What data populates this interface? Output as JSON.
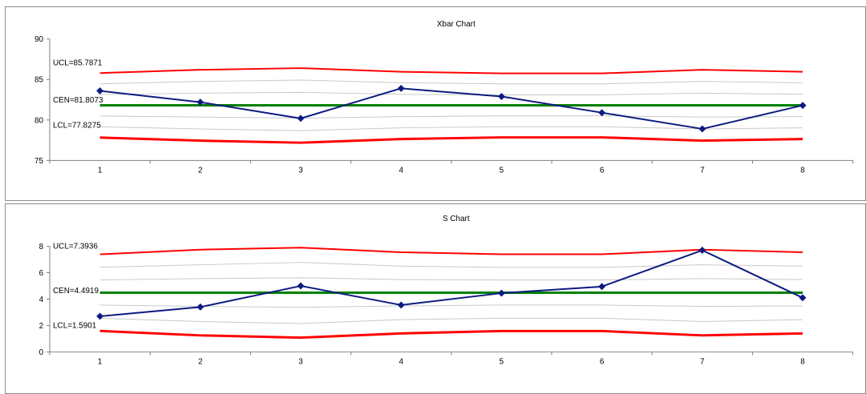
{
  "chart_data": [
    {
      "type": "line",
      "title": "Xbar Chart",
      "categories": [
        "1",
        "2",
        "3",
        "4",
        "5",
        "6",
        "7",
        "8"
      ],
      "ylim": [
        75,
        90
      ],
      "yticks": [
        "75",
        "80",
        "85",
        "90"
      ],
      "grid": false,
      "series": [
        {
          "name": "",
          "role": "data",
          "color": "#0d1a80",
          "marker": "diamond",
          "values": [
            83.6,
            82.2,
            80.2,
            83.9,
            82.9,
            80.9,
            78.9,
            81.8
          ]
        },
        {
          "name": "",
          "role": "ucl",
          "color": "#ff0000",
          "values": [
            85.79,
            86.2,
            86.4,
            85.95,
            85.75,
            85.75,
            86.2,
            85.95
          ]
        },
        {
          "name": "",
          "role": "cen",
          "color": "#008000",
          "values": [
            81.81,
            81.81,
            81.81,
            81.81,
            81.81,
            81.81,
            81.81,
            81.81
          ]
        },
        {
          "name": "",
          "role": "lcl",
          "color": "#ff0000",
          "values": [
            77.83,
            77.45,
            77.2,
            77.65,
            77.85,
            77.85,
            77.45,
            77.65
          ]
        },
        {
          "name": "",
          "role": "zone",
          "color": "#c8c8c8",
          "values": [
            84.46,
            84.76,
            84.93,
            84.6,
            84.45,
            84.45,
            84.76,
            84.6
          ]
        },
        {
          "name": "",
          "role": "zone",
          "color": "#c8c8c8",
          "values": [
            83.14,
            83.31,
            83.41,
            83.17,
            83.1,
            83.1,
            83.31,
            83.17
          ]
        },
        {
          "name": "",
          "role": "zone",
          "color": "#c8c8c8",
          "values": [
            80.49,
            80.36,
            80.23,
            80.41,
            80.51,
            80.51,
            80.36,
            80.41
          ]
        },
        {
          "name": "",
          "role": "zone",
          "color": "#c8c8c8",
          "values": [
            79.16,
            78.89,
            78.69,
            79.03,
            79.17,
            79.17,
            78.89,
            79.03
          ]
        }
      ],
      "annotations": [
        "UCL=85.7871",
        "CEN=81.8073",
        "LCL=77.8275"
      ]
    },
    {
      "type": "line",
      "title": "S Chart",
      "categories": [
        "1",
        "2",
        "3",
        "4",
        "5",
        "6",
        "7",
        "8"
      ],
      "ylim": [
        0,
        8
      ],
      "yticks": [
        "0",
        "2",
        "4",
        "6",
        "8"
      ],
      "grid": false,
      "series": [
        {
          "name": "",
          "role": "data",
          "color": "#0d1a80",
          "marker": "diamond",
          "values": [
            2.7,
            3.4,
            5.0,
            3.55,
            4.45,
            4.95,
            7.7,
            4.1
          ]
        },
        {
          "name": "",
          "role": "ucl",
          "color": "#ff0000",
          "values": [
            7.39,
            7.75,
            7.9,
            7.55,
            7.4,
            7.4,
            7.75,
            7.55
          ]
        },
        {
          "name": "",
          "role": "cen",
          "color": "#008000",
          "values": [
            4.49,
            4.49,
            4.49,
            4.49,
            4.49,
            4.49,
            4.49,
            4.49
          ]
        },
        {
          "name": "",
          "role": "lcl",
          "color": "#ff0000",
          "values": [
            1.59,
            1.25,
            1.08,
            1.4,
            1.58,
            1.58,
            1.25,
            1.4
          ]
        },
        {
          "name": "",
          "role": "zone",
          "color": "#c8c8c8",
          "values": [
            6.42,
            6.6,
            6.78,
            6.5,
            6.4,
            6.4,
            6.6,
            6.5
          ]
        },
        {
          "name": "",
          "role": "zone",
          "color": "#c8c8c8",
          "values": [
            5.45,
            5.55,
            5.62,
            5.48,
            5.45,
            5.45,
            5.55,
            5.48
          ]
        },
        {
          "name": "",
          "role": "zone",
          "color": "#c8c8c8",
          "values": [
            3.55,
            3.45,
            3.38,
            3.48,
            3.55,
            3.55,
            3.45,
            3.48
          ]
        },
        {
          "name": "",
          "role": "zone",
          "color": "#c8c8c8",
          "values": [
            2.55,
            2.3,
            2.15,
            2.45,
            2.55,
            2.55,
            2.3,
            2.45
          ]
        }
      ],
      "annotations": [
        "UCL=7.3936",
        "CEN=4.4919",
        "LCL=1.5901"
      ]
    }
  ]
}
